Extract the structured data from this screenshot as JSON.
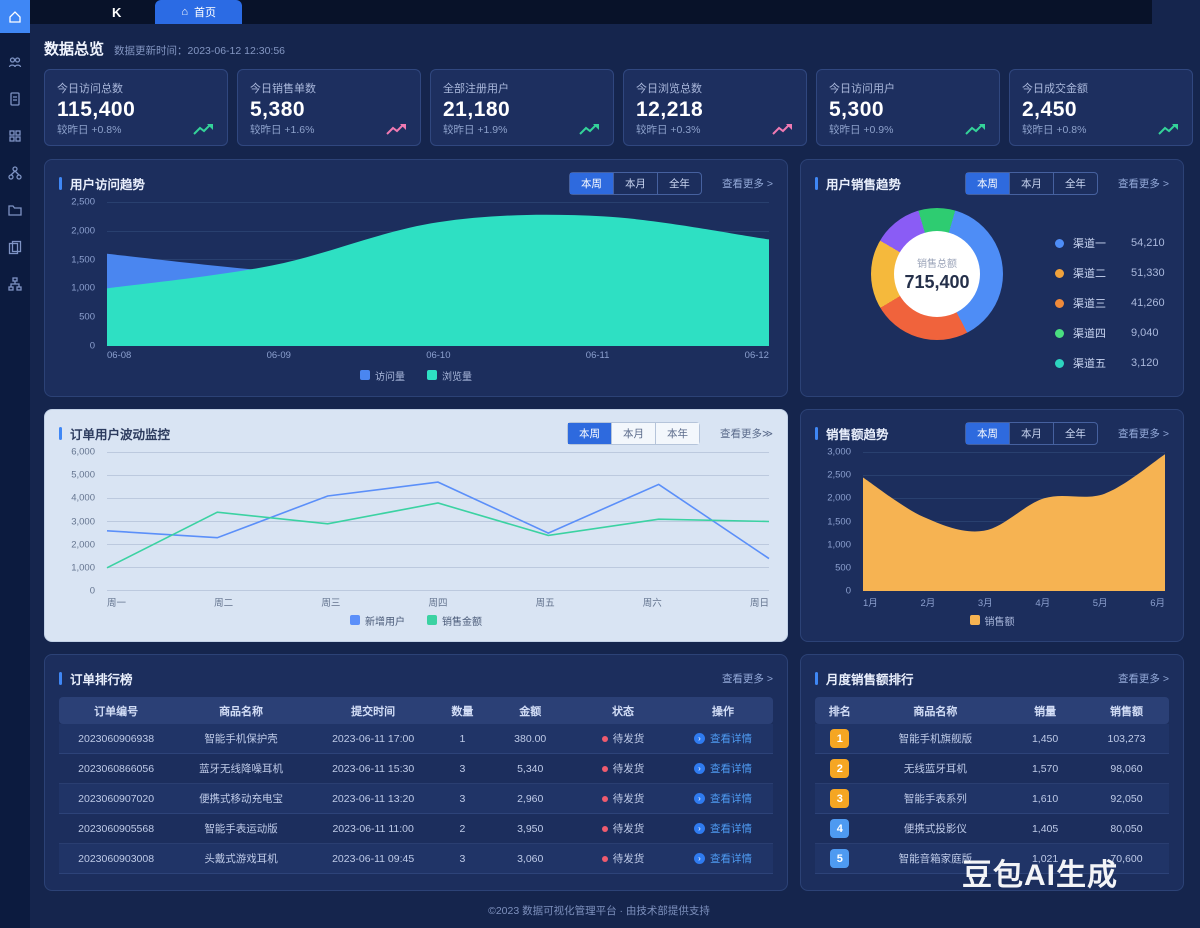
{
  "topbar": {
    "logo": "K",
    "home_tab": "首页"
  },
  "sidebar": {
    "items": [
      {
        "icon": "home-icon",
        "active": true
      },
      {
        "icon": "users-icon"
      },
      {
        "icon": "document-icon"
      },
      {
        "icon": "apps-icon"
      },
      {
        "icon": "cluster-icon"
      },
      {
        "icon": "folder-icon"
      },
      {
        "icon": "pages-icon"
      },
      {
        "icon": "tree-icon"
      }
    ]
  },
  "page": {
    "title": "数据总览",
    "subtitle": "数据更新时间：2023-06-12 12:30:56"
  },
  "kpis": [
    {
      "label": "今日访问总数",
      "value": "115,400",
      "delta": "较昨日 +0.8%",
      "trend_color": "#34d399"
    },
    {
      "label": "今日销售单数",
      "value": "5,380",
      "delta": "较昨日 +1.6%",
      "trend_color": "#f07ab2"
    },
    {
      "label": "全部注册用户",
      "value": "21,180",
      "delta": "较昨日 +1.9%",
      "trend_color": "#34d399"
    },
    {
      "label": "今日浏览总数",
      "value": "12,218",
      "delta": "较昨日 +0.3%",
      "trend_color": "#f07ab2"
    },
    {
      "label": "今日访问用户",
      "value": "5,300",
      "delta": "较昨日 +0.9%",
      "trend_color": "#34d399"
    },
    {
      "label": "今日成交金额",
      "value": "2,450",
      "delta": "较昨日 +0.8%",
      "trend_color": "#34d399"
    }
  ],
  "panels": {
    "visits": {
      "title": "用户访问趋势",
      "tabs": [
        "本周",
        "本月",
        "全年"
      ],
      "active_tab": 0,
      "more": "查看更多 >"
    },
    "donut": {
      "title": "用户销售趋势",
      "tabs": [
        "本周",
        "本月",
        "全年"
      ],
      "active_tab": 0,
      "more": "查看更多 >"
    },
    "fluct": {
      "title": "订单用户波动监控",
      "tabs": [
        "本周",
        "本月",
        "本年"
      ],
      "active_tab": 0,
      "more": "查看更多≫"
    },
    "sales": {
      "title": "销售额趋势",
      "tabs": [
        "本周",
        "本月",
        "全年"
      ],
      "active_tab": 0,
      "more": "查看更多 >"
    },
    "orders": {
      "title": "订单排行榜",
      "more": "查看更多 >",
      "headers": [
        "订单编号",
        "商品名称",
        "提交时间",
        "数量",
        "金额",
        "状态",
        "操作"
      ],
      "rows": [
        {
          "no": "2023060906938",
          "name": "智能手机保护壳",
          "time": "2023-06-11 17:00",
          "qty": "1",
          "amount": "380.00",
          "status": "待发货",
          "status_color": "#ef5b6e",
          "action": "查看详情"
        },
        {
          "no": "2023060866056",
          "name": "蓝牙无线降噪耳机",
          "time": "2023-06-11 15:30",
          "qty": "3",
          "amount": "5,340",
          "status": "待发货",
          "status_color": "#ef5b6e",
          "action": "查看详情"
        },
        {
          "no": "2023060907020",
          "name": "便携式移动充电宝",
          "time": "2023-06-11 13:20",
          "qty": "3",
          "amount": "2,960",
          "status": "待发货",
          "status_color": "#ef5b6e",
          "action": "查看详情"
        },
        {
          "no": "2023060905568",
          "name": "智能手表运动版",
          "time": "2023-06-11 11:00",
          "qty": "2",
          "amount": "3,950",
          "status": "待发货",
          "status_color": "#ef5b6e",
          "action": "查看详情"
        },
        {
          "no": "2023060903008",
          "name": "头戴式游戏耳机",
          "time": "2023-06-11 09:45",
          "qty": "3",
          "amount": "3,060",
          "status": "待发货",
          "status_color": "#ef5b6e",
          "action": "查看详情"
        }
      ]
    },
    "monthly": {
      "title": "月度销售额排行",
      "more": "查看更多 >",
      "headers": [
        "排名",
        "商品名称",
        "销量",
        "销售额"
      ],
      "rows": [
        {
          "rank": "1",
          "name": "智能手机旗舰版",
          "qty": "1,450",
          "amount": "103,273",
          "badge": "#f5a623"
        },
        {
          "rank": "2",
          "name": "无线蓝牙耳机",
          "qty": "1,570",
          "amount": "98,060",
          "badge": "#f5a623"
        },
        {
          "rank": "3",
          "name": "智能手表系列",
          "qty": "1,610",
          "amount": "92,050",
          "badge": "#f5a623"
        },
        {
          "rank": "4",
          "name": "便携式投影仪",
          "qty": "1,405",
          "amount": "80,050",
          "badge": "#4e9af1"
        },
        {
          "rank": "5",
          "name": "智能音箱家庭版",
          "qty": "1,021",
          "amount": "70,600",
          "badge": "#4e9af1"
        }
      ]
    }
  },
  "chart_data": [
    {
      "id": "visits",
      "type": "area",
      "title": "用户访问趋势",
      "categories": [
        "06-08",
        "06-09",
        "06-10",
        "06-11",
        "06-12"
      ],
      "series": [
        {
          "name": "访问量",
          "color": "#4a86f0",
          "values": [
            1600,
            1300,
            1150,
            950,
            850
          ]
        },
        {
          "name": "浏览量",
          "color": "#2ee0c3",
          "values": [
            1000,
            1400,
            2150,
            2250,
            1850
          ]
        }
      ],
      "ylim": [
        0,
        2500
      ],
      "yticks": [
        "2,500",
        "2,000",
        "1,500",
        "1,000",
        "500",
        "0"
      ],
      "grid": true,
      "legend_position": "bottom"
    },
    {
      "id": "donut",
      "type": "pie",
      "title": "用户销售趋势",
      "center_label": "销售总额",
      "center_value": "715,400",
      "slices": [
        {
          "label": "渠道一",
          "value": 38,
          "color": "#4e8df6",
          "legend_color": "#4e8df6",
          "amount": "54,210"
        },
        {
          "label": "渠道二",
          "value": 24,
          "color": "#f0633c",
          "legend_color": "#f0a23c",
          "amount": "51,330"
        },
        {
          "label": "渠道三",
          "value": 17,
          "color": "#f5b93c",
          "legend_color": "#ef8a3a",
          "amount": "41,260"
        },
        {
          "label": "渠道四",
          "value": 12,
          "color": "#8a5cf5",
          "legend_color": "#4ade80",
          "amount": "9,040"
        },
        {
          "label": "渠道五",
          "value": 9,
          "color": "#2ecc71",
          "legend_color": "#2dd4bf",
          "amount": "3,120"
        }
      ],
      "start_angle_deg": 16,
      "legend_position": "right"
    },
    {
      "id": "fluct",
      "type": "line",
      "title": "订单用户波动监控",
      "categories": [
        "周一",
        "周二",
        "周三",
        "周四",
        "周五",
        "周六",
        "周日"
      ],
      "series": [
        {
          "name": "新增用户",
          "color": "#5b8ff9",
          "values": [
            2600,
            2300,
            4100,
            4700,
            2500,
            4600,
            1400
          ]
        },
        {
          "name": "销售金额",
          "color": "#3bd2a2",
          "values": [
            1000,
            3400,
            2900,
            3800,
            2400,
            3100,
            3000
          ]
        }
      ],
      "ylim": [
        0,
        6000
      ],
      "yticks": [
        "6,000",
        "5,000",
        "4,000",
        "3,000",
        "2,000",
        "1,000",
        "0"
      ],
      "grid": true,
      "legend_position": "bottom"
    },
    {
      "id": "sales",
      "type": "area",
      "title": "销售额趋势",
      "categories": [
        "1月",
        "2月",
        "3月",
        "4月",
        "5月",
        "6月"
      ],
      "series": [
        {
          "name": "销售额",
          "color": "#f6b352",
          "values": [
            2450,
            1600,
            1300,
            2000,
            2100,
            2950
          ]
        }
      ],
      "ylim": [
        0,
        3000
      ],
      "yticks": [
        "3,000",
        "2,500",
        "2,000",
        "1,500",
        "1,000",
        "500",
        "0"
      ],
      "grid": true,
      "legend_position": "bottom"
    }
  ],
  "footer": "©2023 数据可视化管理平台 · 由技术部提供支持",
  "watermark": "豆包AI生成",
  "colors": {
    "accent": "#3f87f5",
    "panel_bg": "#1c2e5d",
    "light_panel_bg": "#d9e4f3",
    "up_green": "#34d399",
    "up_pink": "#f07ab2",
    "table_header_bg": "#2b4076"
  }
}
